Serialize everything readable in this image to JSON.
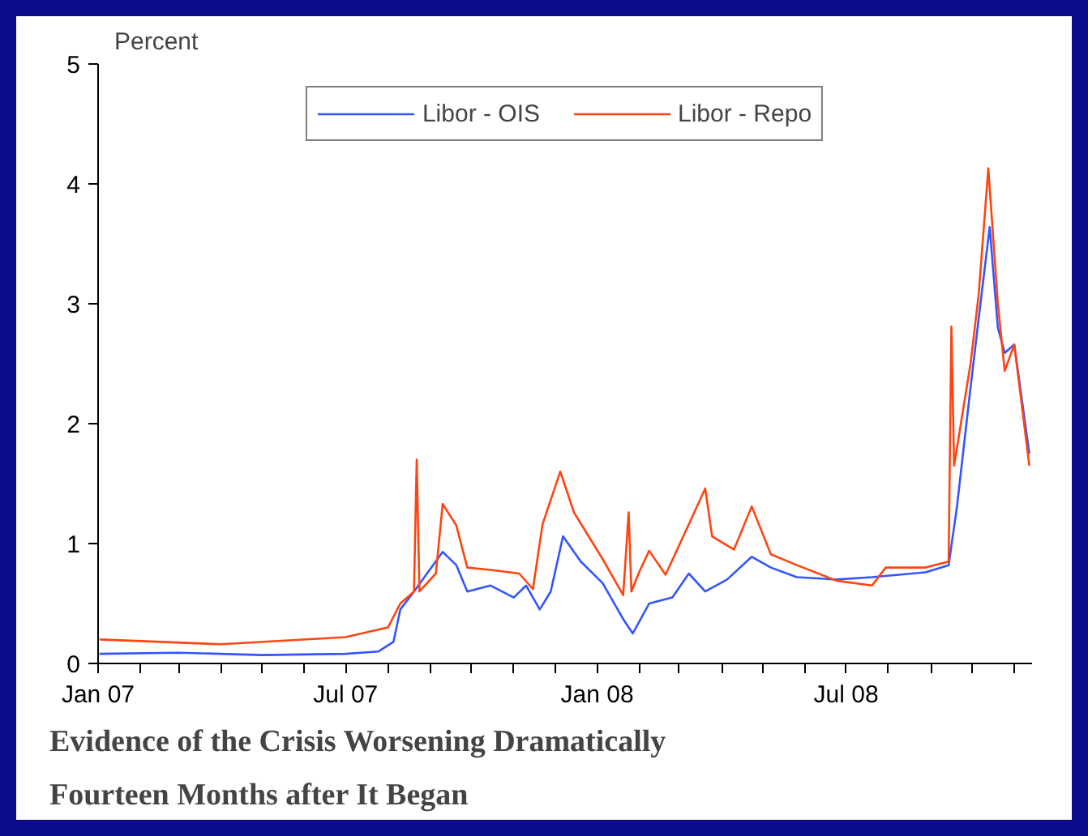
{
  "chart_data": {
    "type": "line",
    "title": "Evidence of the Crisis Worsening Dramatically Fourteen Months after It Began",
    "ylabel": "Percent",
    "xlim": [
      "2007-01-01",
      "2008-11-14"
    ],
    "xticks": [
      {
        "value": "2007-01-01",
        "label": "Jan 07"
      },
      {
        "value": "2007-02-01",
        "label": null
      },
      {
        "value": "2007-03-01",
        "label": null
      },
      {
        "value": "2007-04-01",
        "label": null
      },
      {
        "value": "2007-05-01",
        "label": null
      },
      {
        "value": "2007-06-01",
        "label": null
      },
      {
        "value": "2007-07-01",
        "label": "Jul 07"
      },
      {
        "value": "2007-08-01",
        "label": null
      },
      {
        "value": "2007-09-01",
        "label": null
      },
      {
        "value": "2007-10-01",
        "label": null
      },
      {
        "value": "2007-11-01",
        "label": null
      },
      {
        "value": "2007-12-01",
        "label": null
      },
      {
        "value": "2008-01-01",
        "label": "Jan 08"
      },
      {
        "value": "2008-02-01",
        "label": null
      },
      {
        "value": "2008-03-01",
        "label": null
      },
      {
        "value": "2008-04-01",
        "label": null
      },
      {
        "value": "2008-05-01",
        "label": null
      },
      {
        "value": "2008-06-01",
        "label": null
      },
      {
        "value": "2008-07-01",
        "label": "Jul 08"
      },
      {
        "value": "2008-08-01",
        "label": null
      },
      {
        "value": "2008-09-01",
        "label": null
      },
      {
        "value": "2008-10-01",
        "label": null
      },
      {
        "value": "2008-11-01",
        "label": null
      }
    ],
    "ylim": [
      0,
      5
    ],
    "yticks": [
      0,
      1,
      2,
      3,
      4,
      5
    ],
    "grid": false,
    "legend": "top",
    "line_style": "solid",
    "series": [
      {
        "name": "Libor - OIS",
        "color": "#3355ff",
        "x": [
          "2007-01-02",
          "2007-03-01",
          "2007-05-01",
          "2007-07-01",
          "2007-07-25",
          "2007-08-05",
          "2007-08-10",
          "2007-08-20",
          "2007-09-10",
          "2007-09-20",
          "2007-09-28",
          "2007-10-15",
          "2007-11-01",
          "2007-11-10",
          "2007-11-20",
          "2007-11-28",
          "2007-12-07",
          "2007-12-20",
          "2008-01-05",
          "2008-01-20",
          "2008-01-27",
          "2008-02-08",
          "2008-02-25",
          "2008-03-08",
          "2008-03-20",
          "2008-04-05",
          "2008-04-23",
          "2008-05-07",
          "2008-05-26",
          "2008-06-24",
          "2008-07-20",
          "2008-08-28",
          "2008-09-14",
          "2008-09-20",
          "2008-09-30",
          "2008-10-06",
          "2008-10-14",
          "2008-10-20",
          "2008-10-25",
          "2008-11-01",
          "2008-11-12"
        ],
        "values": [
          0.08,
          0.09,
          0.07,
          0.08,
          0.1,
          0.18,
          0.45,
          0.6,
          0.93,
          0.82,
          0.6,
          0.65,
          0.55,
          0.65,
          0.45,
          0.6,
          1.06,
          0.85,
          0.67,
          0.37,
          0.25,
          0.5,
          0.55,
          0.75,
          0.6,
          0.7,
          0.89,
          0.8,
          0.72,
          0.7,
          0.72,
          0.76,
          0.82,
          1.3,
          2.3,
          2.88,
          3.64,
          2.8,
          2.59,
          2.66,
          1.75
        ]
      },
      {
        "name": "Libor - Repo",
        "color": "#ff4411",
        "x": [
          "2007-01-02",
          "2007-04-01",
          "2007-07-01",
          "2007-08-01",
          "2007-08-10",
          "2007-08-20",
          "2007-08-22",
          "2007-08-24",
          "2007-09-05",
          "2007-09-10",
          "2007-09-20",
          "2007-09-28",
          "2007-10-15",
          "2007-11-05",
          "2007-11-15",
          "2007-11-22",
          "2007-12-05",
          "2007-12-15",
          "2008-01-05",
          "2008-01-20",
          "2008-01-24",
          "2008-01-26",
          "2008-02-01",
          "2008-02-08",
          "2008-02-20",
          "2008-03-08",
          "2008-03-20",
          "2008-03-25",
          "2008-04-10",
          "2008-04-23",
          "2008-05-07",
          "2008-05-26",
          "2008-06-24",
          "2008-07-20",
          "2008-07-30",
          "2008-08-28",
          "2008-09-14",
          "2008-09-16",
          "2008-09-18",
          "2008-09-30",
          "2008-10-06",
          "2008-10-13",
          "2008-10-20",
          "2008-10-25",
          "2008-11-01",
          "2008-11-12"
        ],
        "values": [
          0.2,
          0.16,
          0.22,
          0.3,
          0.5,
          0.6,
          1.7,
          0.6,
          0.75,
          1.33,
          1.15,
          0.8,
          0.78,
          0.75,
          0.62,
          1.16,
          1.6,
          1.26,
          0.87,
          0.57,
          1.26,
          0.6,
          0.77,
          0.94,
          0.74,
          1.16,
          1.46,
          1.06,
          0.95,
          1.31,
          0.91,
          0.82,
          0.69,
          0.65,
          0.8,
          0.8,
          0.85,
          2.81,
          1.65,
          2.5,
          3.08,
          4.13,
          3.0,
          2.44,
          2.66,
          1.65
        ]
      }
    ]
  }
}
